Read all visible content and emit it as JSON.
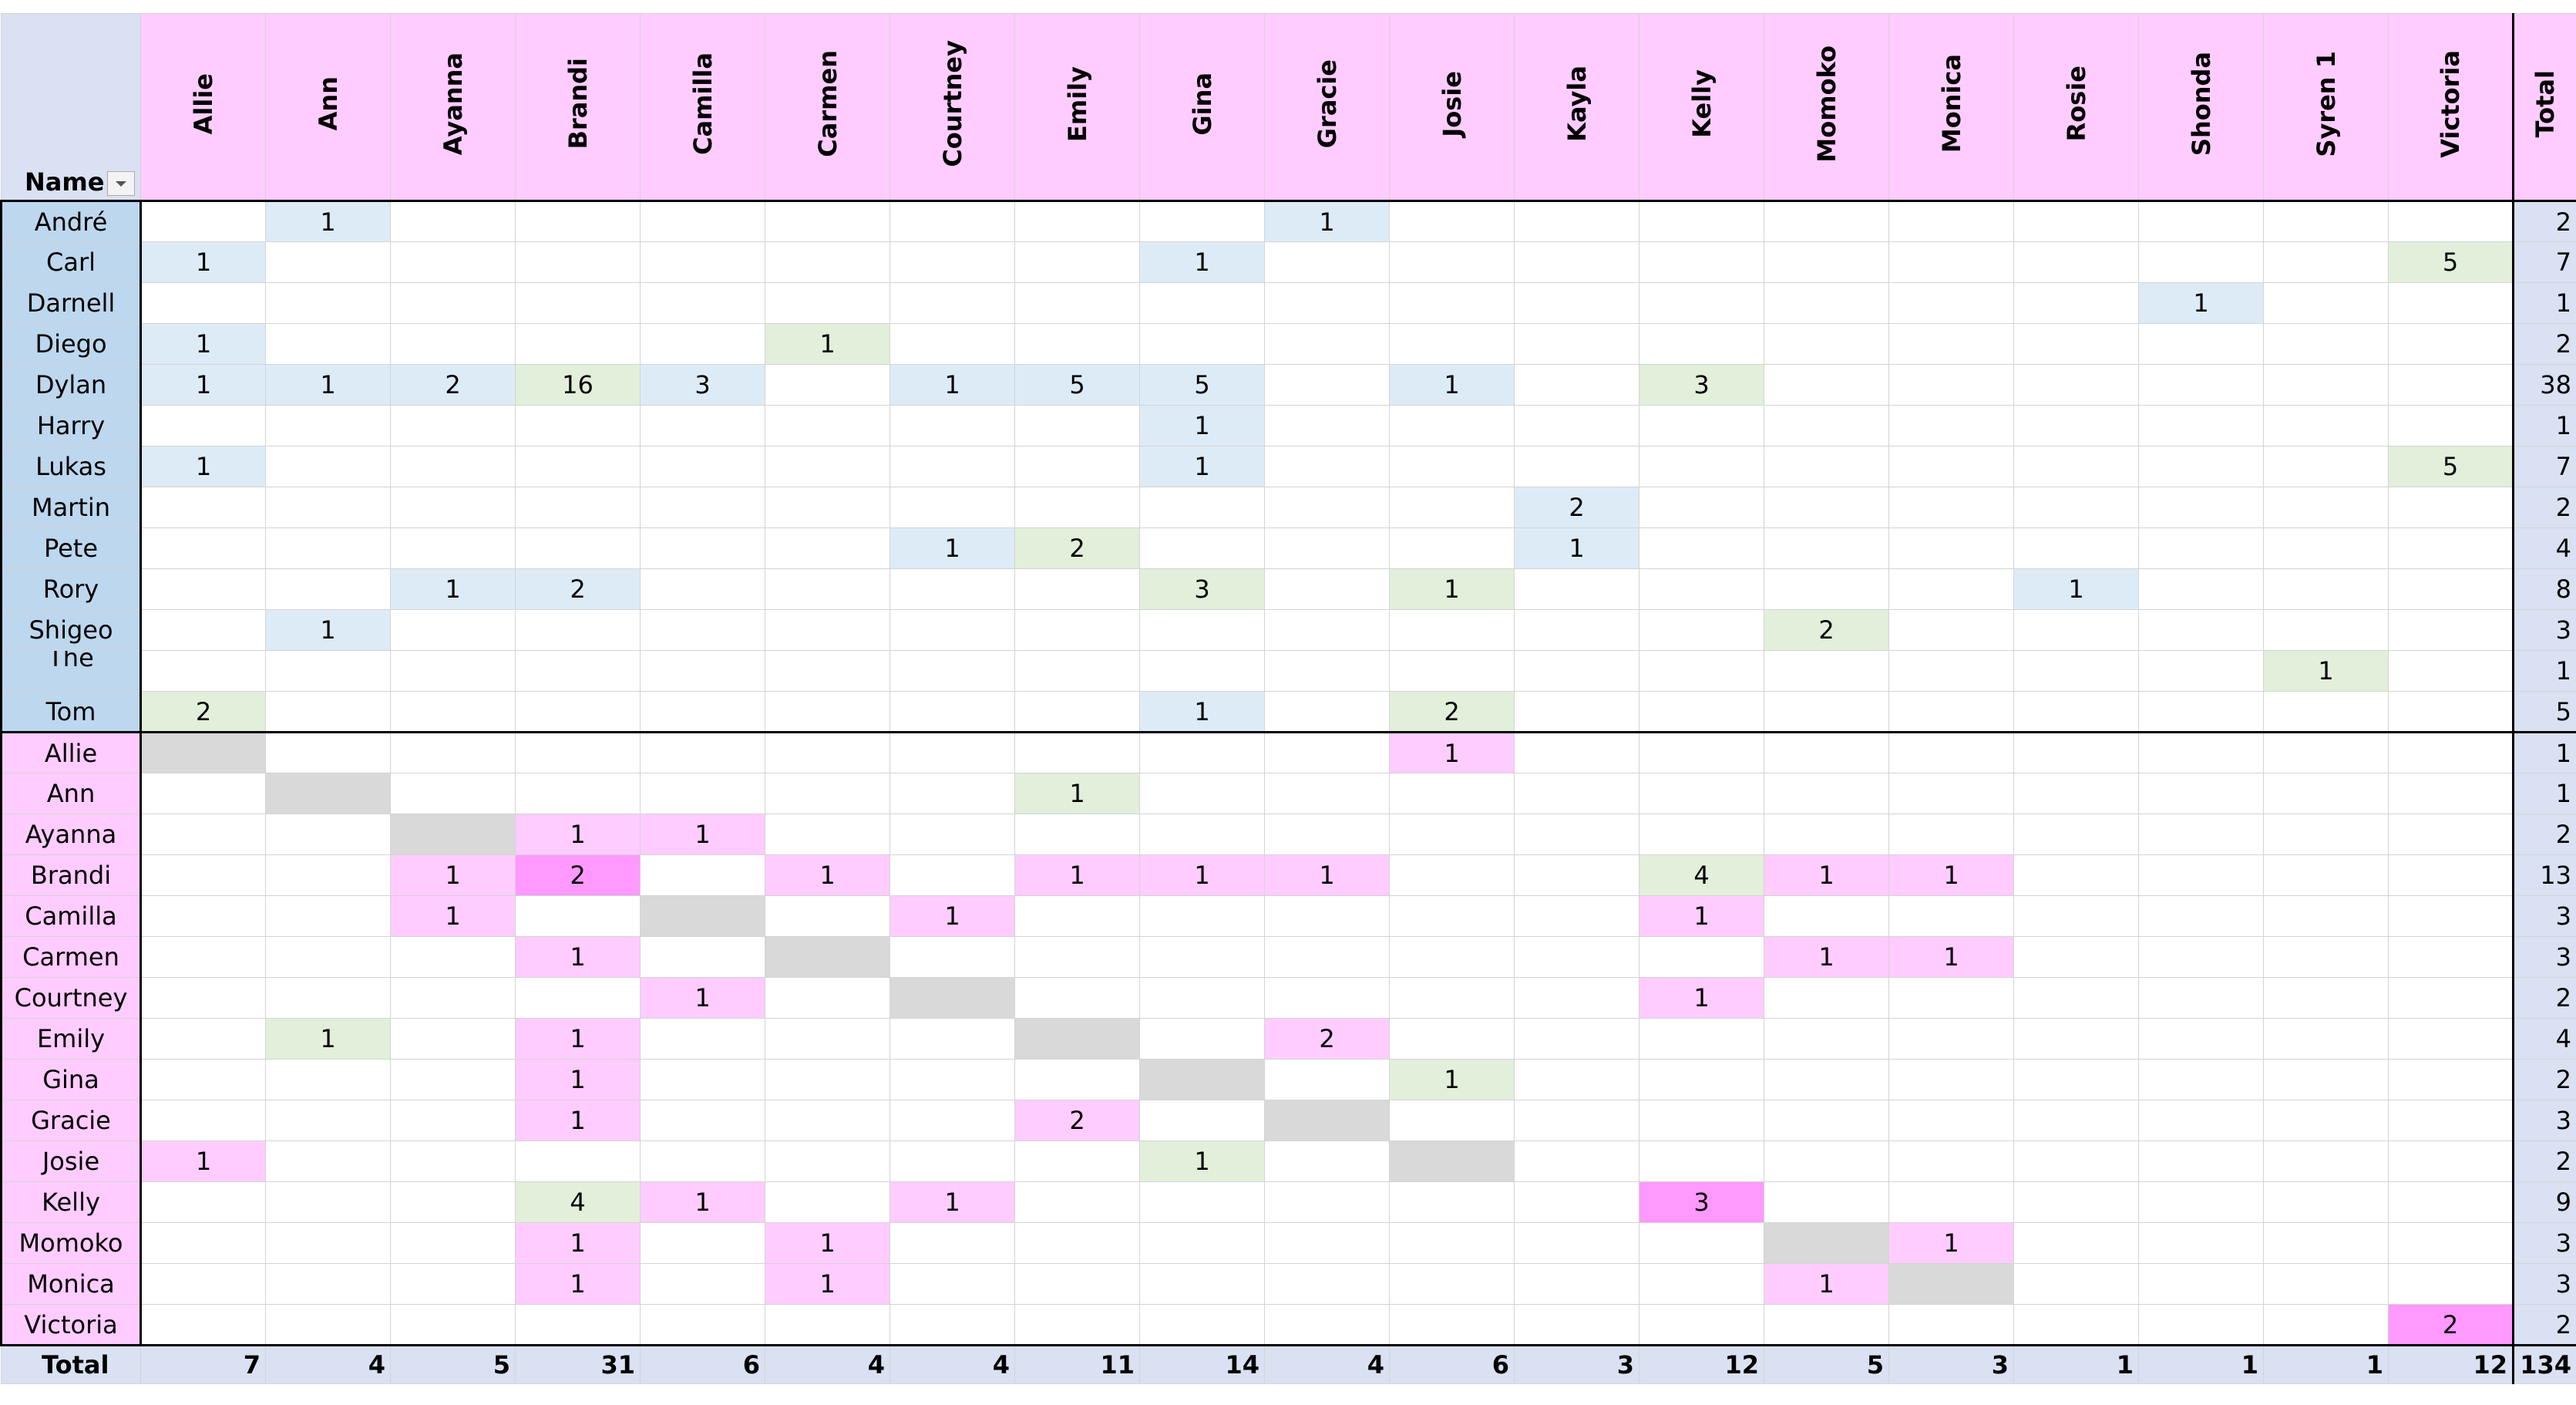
{
  "table": {
    "corner": "Name",
    "columns": [
      "Allie",
      "Ann",
      "Ayanna",
      "Brandi",
      "Camilla",
      "Carmen",
      "Courtney",
      "Emily",
      "Gina",
      "Gracie",
      "Josie",
      "Kayla",
      "Kelly",
      "Momoko",
      "Monica",
      "Rosie",
      "Shonda",
      "Syren 1",
      "Victoria"
    ],
    "total_header": "Total",
    "palette": {
      "b": "#ddebf7",
      "g": "#e2efda",
      "p": "#ffccff",
      "P": "#ff99ff",
      "x": "#d9d9d9"
    },
    "sections": [
      {
        "name_fill": "#bdd7ee",
        "rows": [
          {
            "name": "André",
            "fills": ".b.......b.........",
            "cells": [
              null,
              1,
              null,
              null,
              null,
              null,
              null,
              null,
              null,
              1,
              null,
              null,
              null,
              null,
              null,
              null,
              null,
              null,
              null
            ],
            "total": 2
          },
          {
            "name": "Carl",
            "fills": "b.......b.........g",
            "cells": [
              1,
              null,
              null,
              null,
              null,
              null,
              null,
              null,
              1,
              null,
              null,
              null,
              null,
              null,
              null,
              null,
              null,
              null,
              5
            ],
            "total": 7
          },
          {
            "name": "Darnell",
            "fills": "................b..",
            "cells": [
              null,
              null,
              null,
              null,
              null,
              null,
              null,
              null,
              null,
              null,
              null,
              null,
              null,
              null,
              null,
              null,
              1,
              null,
              null
            ],
            "total": 1
          },
          {
            "name": "Diego",
            "fills": "b....g.............",
            "cells": [
              1,
              null,
              null,
              null,
              null,
              1,
              null,
              null,
              null,
              null,
              null,
              null,
              null,
              null,
              null,
              null,
              null,
              null,
              null
            ],
            "total": 2
          },
          {
            "name": "Dylan",
            "fills": "bbbgb.bbb.b.g......",
            "cells": [
              1,
              1,
              2,
              16,
              3,
              null,
              1,
              5,
              5,
              null,
              1,
              null,
              3,
              null,
              null,
              null,
              null,
              null,
              null
            ],
            "total": 38
          },
          {
            "name": "Harry",
            "fills": "........b..........",
            "cells": [
              null,
              null,
              null,
              null,
              null,
              null,
              null,
              null,
              1,
              null,
              null,
              null,
              null,
              null,
              null,
              null,
              null,
              null,
              null
            ],
            "total": 1
          },
          {
            "name": "Lukas",
            "fills": "b.......b.........g",
            "cells": [
              1,
              null,
              null,
              null,
              null,
              null,
              null,
              null,
              1,
              null,
              null,
              null,
              null,
              null,
              null,
              null,
              null,
              null,
              5
            ],
            "total": 7
          },
          {
            "name": "Martin",
            "fills": "...........b.......",
            "cells": [
              null,
              null,
              null,
              null,
              null,
              null,
              null,
              null,
              null,
              null,
              null,
              2,
              null,
              null,
              null,
              null,
              null,
              null,
              null
            ],
            "total": 2
          },
          {
            "name": "Pete",
            "fills": "......bg...b.......",
            "cells": [
              null,
              null,
              null,
              null,
              null,
              null,
              1,
              2,
              null,
              null,
              null,
              1,
              null,
              null,
              null,
              null,
              null,
              null,
              null
            ],
            "total": 4
          },
          {
            "name": "Rory",
            "fills": "..bb....g.g....b...",
            "cells": [
              null,
              null,
              1,
              2,
              null,
              null,
              null,
              null,
              3,
              null,
              1,
              null,
              null,
              null,
              null,
              1,
              null,
              null,
              null
            ],
            "total": 8
          },
          {
            "name": "Shigeo",
            "fills": ".b...........g.....",
            "cells": [
              null,
              1,
              null,
              null,
              null,
              null,
              null,
              null,
              null,
              null,
              null,
              null,
              null,
              2,
              null,
              null,
              null,
              null,
              null
            ],
            "total": 3
          },
          {
            "name": "The Master",
            "fills": ".................g.",
            "cells": [
              null,
              null,
              null,
              null,
              null,
              null,
              null,
              null,
              null,
              null,
              null,
              null,
              null,
              null,
              null,
              null,
              null,
              1,
              null
            ],
            "total": 1
          },
          {
            "name": "Tom",
            "fills": "g.......b.g........",
            "cells": [
              2,
              null,
              null,
              null,
              null,
              null,
              null,
              null,
              1,
              null,
              2,
              null,
              null,
              null,
              null,
              null,
              null,
              null,
              null
            ],
            "total": 5
          }
        ]
      },
      {
        "name_fill": "#ffccff",
        "rows": [
          {
            "name": "Allie",
            "fills": "x.........p........",
            "cells": [
              null,
              null,
              null,
              null,
              null,
              null,
              null,
              null,
              null,
              null,
              1,
              null,
              null,
              null,
              null,
              null,
              null,
              null,
              null
            ],
            "total": 1
          },
          {
            "name": "Ann",
            "fills": ".x.....g...........",
            "cells": [
              null,
              null,
              null,
              null,
              null,
              null,
              null,
              1,
              null,
              null,
              null,
              null,
              null,
              null,
              null,
              null,
              null,
              null,
              null
            ],
            "total": 1
          },
          {
            "name": "Ayanna",
            "fills": "..xpp..............",
            "cells": [
              null,
              null,
              null,
              1,
              1,
              null,
              null,
              null,
              null,
              null,
              null,
              null,
              null,
              null,
              null,
              null,
              null,
              null,
              null
            ],
            "total": 2
          },
          {
            "name": "Brandi",
            "fills": "..pP.p.ppp..gpp....",
            "cells": [
              null,
              null,
              1,
              2,
              null,
              1,
              null,
              1,
              1,
              1,
              null,
              null,
              4,
              1,
              1,
              null,
              null,
              null,
              null
            ],
            "total": 13
          },
          {
            "name": "Camilla",
            "fills": "..p.x.p.....p......",
            "cells": [
              null,
              null,
              1,
              null,
              null,
              null,
              1,
              null,
              null,
              null,
              null,
              null,
              1,
              null,
              null,
              null,
              null,
              null,
              null
            ],
            "total": 3
          },
          {
            "name": "Carmen",
            "fills": "...p.x.......pp....",
            "cells": [
              null,
              null,
              null,
              1,
              null,
              null,
              null,
              null,
              null,
              null,
              null,
              null,
              null,
              1,
              1,
              null,
              null,
              null,
              null
            ],
            "total": 3
          },
          {
            "name": "Courtney",
            "fills": "....p.x.....p......",
            "cells": [
              null,
              null,
              null,
              null,
              1,
              null,
              null,
              null,
              null,
              null,
              null,
              null,
              1,
              null,
              null,
              null,
              null,
              null,
              null
            ],
            "total": 2
          },
          {
            "name": "Emily",
            "fills": ".g.p...x.p.........",
            "cells": [
              null,
              1,
              null,
              1,
              null,
              null,
              null,
              null,
              null,
              2,
              null,
              null,
              null,
              null,
              null,
              null,
              null,
              null,
              null
            ],
            "total": 4
          },
          {
            "name": "Gina",
            "fills": "...p....x.g........",
            "cells": [
              null,
              null,
              null,
              1,
              null,
              null,
              null,
              null,
              null,
              null,
              1,
              null,
              null,
              null,
              null,
              null,
              null,
              null,
              null
            ],
            "total": 2
          },
          {
            "name": "Gracie",
            "fills": "...p...p.x.........",
            "cells": [
              null,
              null,
              null,
              1,
              null,
              null,
              null,
              2,
              null,
              null,
              null,
              null,
              null,
              null,
              null,
              null,
              null,
              null,
              null
            ],
            "total": 3
          },
          {
            "name": "Josie",
            "fills": "p.......g.x........",
            "cells": [
              1,
              null,
              null,
              null,
              null,
              null,
              null,
              null,
              1,
              null,
              null,
              null,
              null,
              null,
              null,
              null,
              null,
              null,
              null
            ],
            "total": 2
          },
          {
            "name": "Kelly",
            "fills": "...gp.p.....P......",
            "cells": [
              null,
              null,
              null,
              4,
              1,
              null,
              1,
              null,
              null,
              null,
              null,
              null,
              3,
              null,
              null,
              null,
              null,
              null,
              null
            ],
            "total": 9
          },
          {
            "name": "Momoko",
            "fills": "...p.p.......xp....",
            "cells": [
              null,
              null,
              null,
              1,
              null,
              1,
              null,
              null,
              null,
              null,
              null,
              null,
              null,
              null,
              1,
              null,
              null,
              null,
              null
            ],
            "total": 3
          },
          {
            "name": "Monica",
            "fills": "...p.p.......px....",
            "cells": [
              null,
              null,
              null,
              1,
              null,
              1,
              null,
              null,
              null,
              null,
              null,
              null,
              null,
              1,
              null,
              null,
              null,
              null,
              null
            ],
            "total": 3
          },
          {
            "name": "Victoria",
            "fills": "..................P",
            "cells": [
              null,
              null,
              null,
              null,
              null,
              null,
              null,
              null,
              null,
              null,
              null,
              null,
              null,
              null,
              null,
              null,
              null,
              null,
              2
            ],
            "total": 2
          }
        ]
      }
    ],
    "totals": {
      "label": "Total",
      "cells": [
        7,
        4,
        5,
        31,
        6,
        4,
        4,
        11,
        14,
        4,
        6,
        3,
        12,
        5,
        3,
        1,
        1,
        1,
        12
      ],
      "grand": 134
    }
  }
}
